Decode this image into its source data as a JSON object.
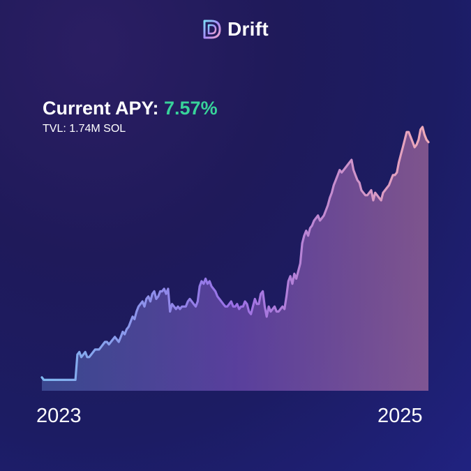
{
  "brand": {
    "name": "Drift"
  },
  "headline": {
    "prefix": "Current APY: ",
    "apy": "7.57%",
    "tvl": "TVL: 1.74M SOL"
  },
  "colors": {
    "apy": "#38d39a",
    "line_start": "#7fb8f0",
    "line_mid": "#9a6fe6",
    "line_end": "#f0aab8"
  },
  "chart_data": {
    "type": "area",
    "title": "",
    "xlabel": "",
    "ylabel": "",
    "x_tick_labels": [
      "2023",
      "2025"
    ],
    "grid": false,
    "values": [
      2,
      1,
      1,
      1,
      1,
      1,
      1,
      1,
      1,
      1,
      1,
      1,
      1,
      1,
      1,
      1,
      1,
      1,
      11,
      12,
      10,
      11,
      12,
      10,
      10,
      11,
      12,
      13,
      13,
      13,
      14,
      15,
      16,
      16,
      15,
      16,
      17,
      18,
      17,
      16,
      18,
      20,
      19,
      21,
      22,
      24,
      26,
      25,
      28,
      30,
      31,
      32,
      30,
      33,
      34,
      32,
      35,
      36,
      33,
      34,
      36,
      36,
      37,
      35,
      37,
      28,
      31,
      30,
      29,
      30,
      29,
      30,
      30,
      30,
      32,
      33,
      32,
      31,
      30,
      32,
      38,
      40,
      39,
      41,
      39,
      40,
      38,
      37,
      36,
      34,
      33,
      32,
      31,
      30,
      30,
      31,
      32,
      30,
      30,
      31,
      29,
      30,
      30,
      32,
      31,
      28,
      27,
      30,
      33,
      31,
      31,
      35,
      36,
      30,
      26,
      30,
      28,
      29,
      30,
      28,
      28,
      29,
      30,
      29,
      34,
      40,
      42,
      39,
      43,
      41,
      44,
      47,
      55,
      58,
      60,
      58,
      61,
      62,
      64,
      65,
      66,
      64,
      65,
      66,
      68,
      70,
      73,
      75,
      78,
      80,
      82,
      84,
      83,
      84,
      85,
      86,
      87,
      88,
      84,
      82,
      80,
      79,
      76,
      75,
      74,
      74,
      75,
      76,
      72,
      75,
      74,
      73,
      72,
      75,
      76,
      77,
      78,
      80,
      82,
      82,
      83,
      87,
      90,
      93,
      96,
      99,
      99,
      97,
      95,
      93,
      94,
      96,
      100,
      101,
      98,
      96,
      95
    ]
  }
}
